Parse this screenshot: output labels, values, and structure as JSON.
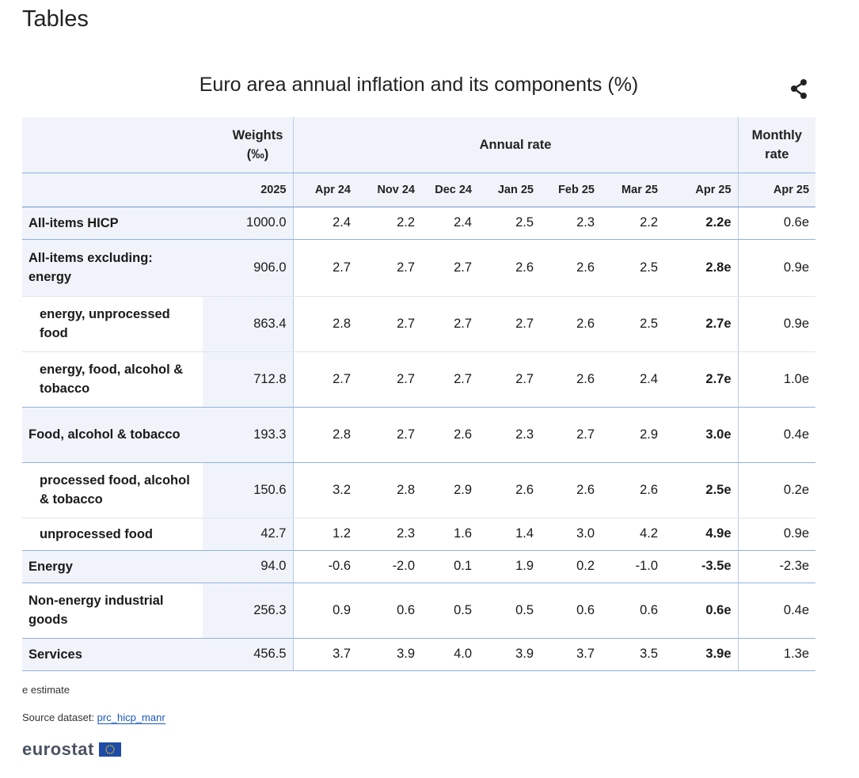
{
  "page": {
    "title": "Tables"
  },
  "table": {
    "title": "Euro area annual inflation and its components (%)",
    "headers": {
      "weights": "Weights (‰)",
      "annual_rate": "Annual rate",
      "monthly_rate": "Monthly rate"
    },
    "subheaders": [
      "2025",
      "Apr 24",
      "Nov 24",
      "Dec 24",
      "Jan 25",
      "Feb 25",
      "Mar 25",
      "Apr 25",
      "Apr 25"
    ],
    "rows": [
      {
        "label": "All-items HICP",
        "values": [
          "1000.0",
          "2.4",
          "2.2",
          "2.4",
          "2.5",
          "2.3",
          "2.2",
          "2.2e",
          "0.6e"
        ]
      },
      {
        "label": "All-items excluding: energy",
        "values": [
          "906.0",
          "2.7",
          "2.7",
          "2.7",
          "2.6",
          "2.6",
          "2.5",
          "2.8e",
          "0.9e"
        ]
      },
      {
        "label": "energy, unprocessed food",
        "values": [
          "863.4",
          "2.8",
          "2.7",
          "2.7",
          "2.7",
          "2.6",
          "2.5",
          "2.7e",
          "0.9e"
        ]
      },
      {
        "label": "energy, food, alcohol & tobacco",
        "values": [
          "712.8",
          "2.7",
          "2.7",
          "2.7",
          "2.7",
          "2.6",
          "2.4",
          "2.7e",
          "1.0e"
        ]
      },
      {
        "label": "Food, alcohol & tobacco",
        "values": [
          "193.3",
          "2.8",
          "2.7",
          "2.6",
          "2.3",
          "2.7",
          "2.9",
          "3.0e",
          "0.4e"
        ]
      },
      {
        "label": "processed food, alcohol & tobacco",
        "values": [
          "150.6",
          "3.2",
          "2.8",
          "2.9",
          "2.6",
          "2.6",
          "2.6",
          "2.5e",
          "0.2e"
        ]
      },
      {
        "label": "unprocessed food",
        "values": [
          "42.7",
          "1.2",
          "2.3",
          "1.6",
          "1.4",
          "3.0",
          "4.2",
          "4.9e",
          "0.9e"
        ]
      },
      {
        "label": "Energy",
        "values": [
          "94.0",
          "-0.6",
          "-2.0",
          "0.1",
          "1.9",
          "0.2",
          "-1.0",
          "-3.5e",
          "-2.3e"
        ]
      },
      {
        "label": "Non-energy industrial goods",
        "values": [
          "256.3",
          "0.9",
          "0.6",
          "0.5",
          "0.5",
          "0.6",
          "0.6",
          "0.6e",
          "0.4e"
        ]
      },
      {
        "label": "Services",
        "values": [
          "456.5",
          "3.7",
          "3.9",
          "4.0",
          "3.9",
          "3.7",
          "3.5",
          "3.9e",
          "1.3e"
        ]
      }
    ]
  },
  "footer": {
    "note": "e estimate",
    "source_prefix": "Source dataset: ",
    "source_link": "prc_hicp_manr",
    "logo_text": "eurostat"
  },
  "icons": {
    "share": "share-icon",
    "flag": "eu-flag-icon"
  },
  "colors": {
    "header_bg": "#f0f4fa",
    "border": "#8fb0e2",
    "link": "#1a56c4"
  }
}
